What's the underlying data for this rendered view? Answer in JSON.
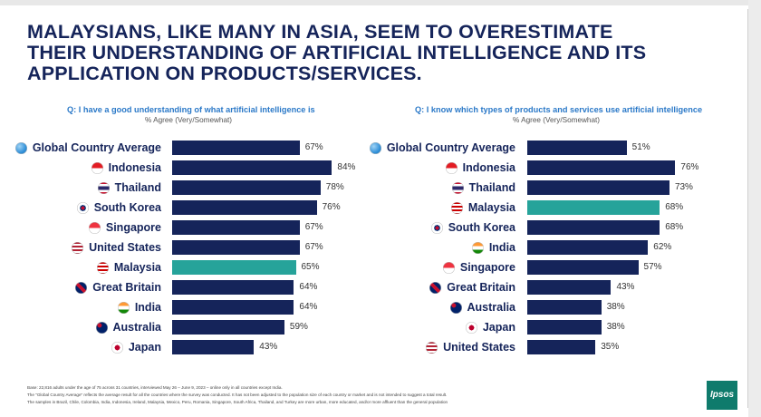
{
  "title_lines": [
    "MALAYSIANS, LIKE MANY IN ASIA, SEEM TO OVERESTIMATE",
    "THEIR UNDERSTANDING OF ARTIFICIAL INTELLIGENCE AND ITS",
    "APPLICATION ON PRODUCTS/SERVICES."
  ],
  "colors": {
    "bar": "#15245a",
    "highlight": "#26a39a",
    "question": "#2b79c8",
    "title": "#15245a"
  },
  "chart_data": [
    {
      "type": "bar",
      "orientation": "horizontal",
      "title": "Q: I have a good understanding of what artificial intelligence is",
      "subtitle": "% Agree (Very/Somewhat)",
      "xlim": [
        0,
        100
      ],
      "highlight": "Malaysia",
      "categories": [
        "Global Country Average",
        "Indonesia",
        "Thailand",
        "South Korea",
        "Singapore",
        "United States",
        "Malaysia",
        "Great Britain",
        "India",
        "Australia",
        "Japan"
      ],
      "values": [
        67,
        84,
        78,
        76,
        67,
        67,
        65,
        64,
        64,
        59,
        43
      ],
      "labels": [
        "67%",
        "84%",
        "78%",
        "76%",
        "67%",
        "67%",
        "65%",
        "64%",
        "64%",
        "59%",
        "43%"
      ],
      "icons": [
        "globe-icon",
        "indonesia-flag-icon",
        "thailand-flag-icon",
        "south-korea-flag-icon",
        "singapore-flag-icon",
        "united-states-flag-icon",
        "malaysia-flag-icon",
        "great-britain-flag-icon",
        "india-flag-icon",
        "australia-flag-icon",
        "japan-flag-icon"
      ]
    },
    {
      "type": "bar",
      "orientation": "horizontal",
      "title": "Q: I know which types of products and services use artificial intelligence",
      "subtitle": "% Agree (Very/Somewhat)",
      "xlim": [
        0,
        100
      ],
      "highlight": "Malaysia",
      "categories": [
        "Global Country Average",
        "Indonesia",
        "Thailand",
        "Malaysia",
        "South Korea",
        "India",
        "Singapore",
        "Great Britain",
        "Australia",
        "Japan",
        "United States"
      ],
      "values": [
        51,
        76,
        73,
        68,
        68,
        62,
        57,
        43,
        38,
        38,
        35
      ],
      "labels": [
        "51%",
        "76%",
        "73%",
        "68%",
        "68%",
        "62%",
        "57%",
        "43%",
        "38%",
        "38%",
        "35%"
      ],
      "icons": [
        "globe-icon",
        "indonesia-flag-icon",
        "thailand-flag-icon",
        "malaysia-flag-icon",
        "south-korea-flag-icon",
        "india-flag-icon",
        "singapore-flag-icon",
        "great-britain-flag-icon",
        "australia-flag-icon",
        "japan-flag-icon",
        "united-states-flag-icon"
      ]
    }
  ],
  "footnotes": [
    "Base: 22,816 adults under the age of 75 across 31 countries, interviewed May 26 – June 9, 2023 – online only in all countries except India.",
    "The \"Global Country Average\" reflects the average result for all the countries where the survey was conducted. It has not been adjusted to the population size of each country or market and is not intended to suggest a total result.",
    "The samples in Brazil, Chile, Colombia, India, Indonesia, Ireland, Malaysia, Mexico, Peru, Romania, Singapore, South Africa, Thailand, and Turkey are more urban, more educated, and/or more affluent than the general population"
  ],
  "logo_text": "Ipsos"
}
